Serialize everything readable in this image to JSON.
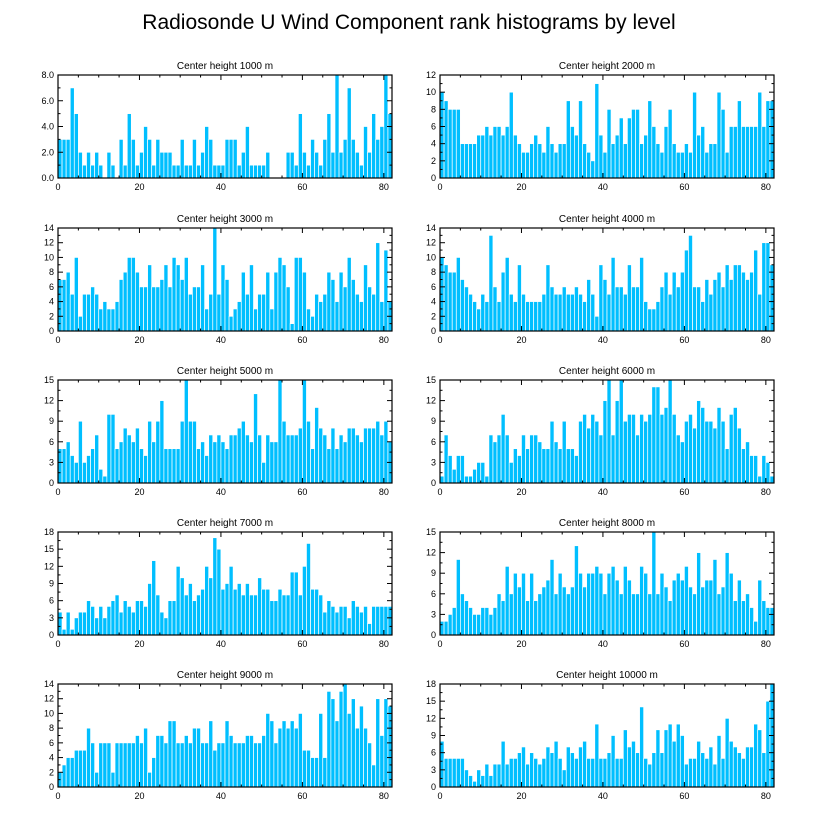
{
  "title": "Radiosonde U Wind Component rank histograms by level",
  "colors": {
    "bar": "#00bfff",
    "bar_edge": "#ffffff",
    "axis": "#000000"
  },
  "chart_data": [
    {
      "type": "bar",
      "title": "Center height 1000 m",
      "xlim": [
        0,
        82
      ],
      "ylim": [
        0,
        8
      ],
      "xticks": [
        0,
        20,
        40,
        60,
        80
      ],
      "yticks": [
        0,
        2,
        4,
        6,
        8
      ],
      "ytick_labels": [
        "0.0",
        "2.0",
        "4.0",
        "6.0",
        "8.0"
      ],
      "values": [
        3,
        3,
        3,
        7,
        5,
        2,
        1,
        2,
        1,
        2,
        1,
        0,
        2,
        1,
        0,
        3,
        1,
        5,
        3,
        1,
        2,
        4,
        3,
        1,
        3,
        2,
        2,
        2,
        1,
        1,
        3,
        1,
        1,
        3,
        1,
        2,
        4,
        3,
        1,
        1,
        1,
        3,
        3,
        3,
        1,
        2,
        4,
        1,
        1,
        1,
        1,
        2,
        0,
        0,
        0,
        0,
        2,
        2,
        1,
        5,
        2,
        1,
        3,
        2,
        1,
        3,
        5,
        2,
        8,
        2,
        3,
        7,
        3,
        2,
        1,
        4,
        2,
        5,
        3,
        4,
        8,
        5
      ]
    },
    {
      "type": "bar",
      "title": "Center height 2000 m",
      "xlim": [
        0,
        82
      ],
      "ylim": [
        0,
        12
      ],
      "xticks": [
        0,
        20,
        40,
        60,
        80
      ],
      "yticks": [
        0,
        2,
        4,
        6,
        8,
        10,
        12
      ],
      "ytick_labels": [
        "0",
        "2",
        "4",
        "6",
        "8",
        "10",
        "12"
      ],
      "values": [
        10,
        9,
        8,
        8,
        8,
        4,
        4,
        4,
        4,
        5,
        5,
        6,
        5,
        6,
        6,
        5,
        6,
        10,
        5,
        4,
        3,
        3,
        4,
        5,
        4,
        3,
        6,
        4,
        3,
        4,
        4,
        9,
        6,
        5,
        9,
        4,
        3,
        2,
        11,
        5,
        3,
        8,
        4,
        5,
        7,
        4,
        7,
        8,
        8,
        4,
        5,
        9,
        6,
        4,
        3,
        6,
        8,
        4,
        3,
        3,
        4,
        3,
        10,
        5,
        6,
        3,
        4,
        4,
        10,
        8,
        3,
        6,
        6,
        9,
        6,
        6,
        6,
        6,
        10,
        6,
        9,
        9
      ]
    },
    {
      "type": "bar",
      "title": "Center height 3000 m",
      "xlim": [
        0,
        82
      ],
      "ylim": [
        0,
        14
      ],
      "xticks": [
        0,
        20,
        40,
        60,
        80
      ],
      "yticks": [
        0,
        2,
        4,
        6,
        8,
        10,
        12,
        14
      ],
      "ytick_labels": [
        "0",
        "2",
        "4",
        "6",
        "8",
        "10",
        "12",
        "14"
      ],
      "values": [
        7,
        7,
        8,
        5,
        10,
        2,
        5,
        5,
        6,
        5,
        3,
        4,
        3,
        3,
        4,
        7,
        8,
        10,
        10,
        8,
        6,
        6,
        9,
        6,
        6,
        7,
        9,
        6,
        10,
        9,
        7,
        10,
        5,
        6,
        6,
        9,
        3,
        5,
        14,
        5,
        9,
        7,
        2,
        3,
        4,
        8,
        5,
        9,
        3,
        5,
        5,
        8,
        3,
        8,
        10,
        9,
        6,
        1,
        10,
        10,
        8,
        3,
        2,
        5,
        4,
        5,
        8,
        7,
        4,
        8,
        6,
        10,
        7,
        5,
        4,
        9,
        6,
        5,
        12,
        4,
        11,
        4
      ]
    },
    {
      "type": "bar",
      "title": "Center height 4000 m",
      "xlim": [
        0,
        82
      ],
      "ylim": [
        0,
        14
      ],
      "xticks": [
        0,
        20,
        40,
        60,
        80
      ],
      "yticks": [
        0,
        2,
        4,
        6,
        8,
        10,
        12,
        14
      ],
      "ytick_labels": [
        "0",
        "2",
        "4",
        "6",
        "8",
        "10",
        "12",
        "14"
      ],
      "values": [
        10,
        9,
        8,
        8,
        10,
        7,
        6,
        5,
        4,
        3,
        5,
        4,
        13,
        6,
        4,
        8,
        10,
        5,
        4,
        9,
        5,
        4,
        4,
        4,
        4,
        5,
        9,
        6,
        5,
        5,
        6,
        5,
        5,
        6,
        5,
        4,
        7,
        5,
        2,
        9,
        7,
        5,
        10,
        6,
        6,
        5,
        9,
        6,
        6,
        10,
        4,
        3,
        3,
        4,
        6,
        8,
        5,
        8,
        6,
        8,
        11,
        13,
        6,
        6,
        4,
        7,
        5,
        7,
        8,
        6,
        9,
        7,
        9,
        9,
        8,
        7,
        8,
        11,
        5,
        12,
        12,
        9
      ]
    },
    {
      "type": "bar",
      "title": "Center height 5000 m",
      "xlim": [
        0,
        82
      ],
      "ylim": [
        0,
        15
      ],
      "xticks": [
        0,
        20,
        40,
        60,
        80
      ],
      "yticks": [
        0,
        3,
        6,
        9,
        12,
        15
      ],
      "ytick_labels": [
        "0",
        "3",
        "6",
        "9",
        "12",
        "15"
      ],
      "values": [
        5,
        5,
        6,
        4,
        3,
        9,
        3,
        4,
        5,
        7,
        2,
        1,
        10,
        10,
        5,
        6,
        8,
        7,
        6,
        8,
        5,
        4,
        9,
        6,
        9,
        12,
        5,
        5,
        5,
        5,
        9,
        15,
        9,
        9,
        5,
        6,
        4,
        7,
        6,
        7,
        6,
        5,
        7,
        7,
        8,
        9,
        7,
        6,
        13,
        7,
        3,
        7,
        6,
        6,
        15,
        9,
        7,
        7,
        7,
        8,
        15,
        9,
        5,
        11,
        8,
        7,
        5,
        8,
        5,
        7,
        6,
        8,
        8,
        7,
        6,
        8,
        8,
        8,
        9,
        7,
        9,
        6
      ]
    },
    {
      "type": "bar",
      "title": "Center height 6000 m",
      "xlim": [
        0,
        82
      ],
      "ylim": [
        0,
        15
      ],
      "xticks": [
        0,
        20,
        40,
        60,
        80
      ],
      "yticks": [
        0,
        3,
        6,
        9,
        12,
        15
      ],
      "ytick_labels": [
        "0",
        "3",
        "6",
        "9",
        "12",
        "15"
      ],
      "values": [
        1,
        7,
        4,
        2,
        4,
        4,
        1,
        1,
        2,
        3,
        3,
        1,
        7,
        6,
        7,
        10,
        7,
        3,
        5,
        4,
        7,
        5,
        7,
        7,
        6,
        5,
        5,
        9,
        6,
        5,
        9,
        5,
        5,
        4,
        9,
        10,
        8,
        10,
        9,
        7,
        12,
        15,
        7,
        12,
        15,
        9,
        10,
        10,
        7,
        10,
        9,
        10,
        14,
        14,
        10,
        11,
        15,
        10,
        7,
        6,
        9,
        10,
        8,
        12,
        11,
        9,
        9,
        8,
        11,
        9,
        5,
        10,
        11,
        8,
        5,
        6,
        4,
        4,
        1,
        4,
        3,
        1
      ]
    },
    {
      "type": "bar",
      "title": "Center height 7000 m",
      "xlim": [
        0,
        82
      ],
      "ylim": [
        0,
        18
      ],
      "xticks": [
        0,
        20,
        40,
        60,
        80
      ],
      "yticks": [
        0,
        3,
        6,
        9,
        12,
        15,
        18
      ],
      "ytick_labels": [
        "0",
        "3",
        "6",
        "9",
        "12",
        "15",
        "18"
      ],
      "values": [
        4,
        1,
        4,
        1,
        3,
        4,
        4,
        6,
        5,
        3,
        5,
        3,
        5,
        6,
        7,
        4,
        6,
        5,
        4,
        6,
        6,
        5,
        9,
        13,
        7,
        4,
        3,
        6,
        6,
        12,
        10,
        7,
        9,
        6,
        7,
        8,
        12,
        10,
        17,
        15,
        8,
        9,
        12,
        8,
        9,
        7,
        9,
        7,
        7,
        10,
        8,
        8,
        6,
        6,
        8,
        7,
        7,
        11,
        11,
        7,
        12,
        16,
        8,
        8,
        7,
        4,
        6,
        5,
        4,
        5,
        5,
        3,
        6,
        5,
        4,
        5,
        2,
        5,
        5,
        5,
        5,
        5
      ]
    },
    {
      "type": "bar",
      "title": "Center height 8000 m",
      "xlim": [
        0,
        82
      ],
      "ylim": [
        0,
        15
      ],
      "xticks": [
        0,
        20,
        40,
        60,
        80
      ],
      "yticks": [
        0,
        3,
        6,
        9,
        12,
        15
      ],
      "ytick_labels": [
        "0",
        "3",
        "6",
        "9",
        "12",
        "15"
      ],
      "values": [
        2,
        2,
        3,
        4,
        11,
        6,
        5,
        4,
        3,
        3,
        4,
        4,
        3,
        4,
        6,
        5,
        10,
        6,
        9,
        7,
        9,
        5,
        9,
        5,
        6,
        7,
        8,
        11,
        6,
        9,
        7,
        6,
        7,
        13,
        9,
        7,
        9,
        9,
        10,
        9,
        6,
        9,
        10,
        8,
        6,
        10,
        8,
        6,
        6,
        10,
        9,
        6,
        15,
        6,
        9,
        7,
        5,
        8,
        9,
        8,
        10,
        7,
        6,
        12,
        7,
        8,
        8,
        11,
        6,
        7,
        12,
        9,
        5,
        8,
        5,
        6,
        4,
        2,
        8,
        5,
        4,
        4
      ]
    },
    {
      "type": "bar",
      "title": "Center height 9000 m",
      "xlim": [
        0,
        82
      ],
      "ylim": [
        0,
        14
      ],
      "xticks": [
        0,
        20,
        40,
        60,
        80
      ],
      "yticks": [
        0,
        2,
        4,
        6,
        8,
        10,
        12,
        14
      ],
      "ytick_labels": [
        "0",
        "2",
        "4",
        "6",
        "8",
        "10",
        "12",
        "14"
      ],
      "values": [
        2,
        3,
        4,
        4,
        5,
        5,
        5,
        8,
        6,
        2,
        6,
        6,
        6,
        2,
        6,
        6,
        6,
        6,
        6,
        7,
        6,
        8,
        2,
        4,
        7,
        7,
        6,
        9,
        9,
        6,
        6,
        7,
        6,
        8,
        8,
        6,
        6,
        9,
        5,
        6,
        6,
        9,
        7,
        6,
        6,
        6,
        7,
        7,
        6,
        6,
        7,
        10,
        9,
        6,
        8,
        9,
        8,
        9,
        8,
        10,
        5,
        5,
        4,
        4,
        10,
        4,
        13,
        12,
        9,
        13,
        14,
        10,
        12,
        8,
        11,
        8,
        6,
        3,
        12,
        7,
        12,
        11
      ]
    },
    {
      "type": "bar",
      "title": "Center height 10000 m",
      "xlim": [
        0,
        82
      ],
      "ylim": [
        0,
        18
      ],
      "xticks": [
        0,
        20,
        40,
        60,
        80
      ],
      "yticks": [
        0,
        3,
        6,
        9,
        12,
        15,
        18
      ],
      "ytick_labels": [
        "0",
        "3",
        "6",
        "9",
        "12",
        "15",
        "18"
      ],
      "values": [
        8,
        5,
        5,
        5,
        5,
        5,
        3,
        2,
        1,
        3,
        2,
        4,
        2,
        4,
        4,
        8,
        4,
        5,
        5,
        6,
        7,
        4,
        6,
        5,
        4,
        5,
        7,
        6,
        8,
        5,
        3,
        7,
        6,
        5,
        7,
        8,
        5,
        5,
        11,
        5,
        5,
        6,
        9,
        5,
        5,
        10,
        7,
        8,
        6,
        14,
        5,
        4,
        6,
        10,
        6,
        10,
        11,
        8,
        11,
        9,
        4,
        5,
        5,
        8,
        6,
        5,
        7,
        4,
        9,
        5,
        12,
        8,
        7,
        6,
        5,
        7,
        7,
        11,
        10,
        6,
        15,
        18
      ]
    }
  ]
}
